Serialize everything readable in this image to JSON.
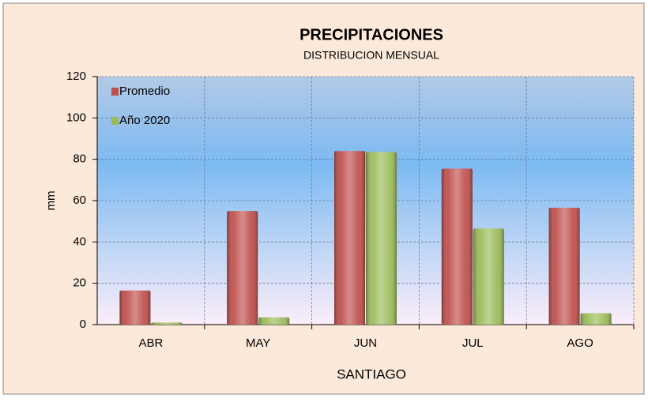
{
  "chart_data": {
    "type": "bar",
    "title": "PRECIPITACIONES",
    "subtitle": "DISTRIBUCION MENSUAL",
    "x_label": "SANTIAGO",
    "y_label": "mm",
    "categories": [
      "ABR",
      "MAY",
      "JUN",
      "JUL",
      "AGO"
    ],
    "series": [
      {
        "name": "Promedio",
        "color": "#c0504d",
        "values": [
          16.5,
          55,
          84,
          75.5,
          56.5
        ]
      },
      {
        "name": "Año 2020",
        "color": "#9bbb59",
        "values": [
          1,
          3.5,
          83.5,
          46.5,
          5.5
        ]
      }
    ],
    "ylim": [
      0,
      120
    ],
    "yticks": [
      0,
      20,
      40,
      60,
      80,
      100,
      120
    ],
    "grid": true,
    "legend": "top-left"
  }
}
